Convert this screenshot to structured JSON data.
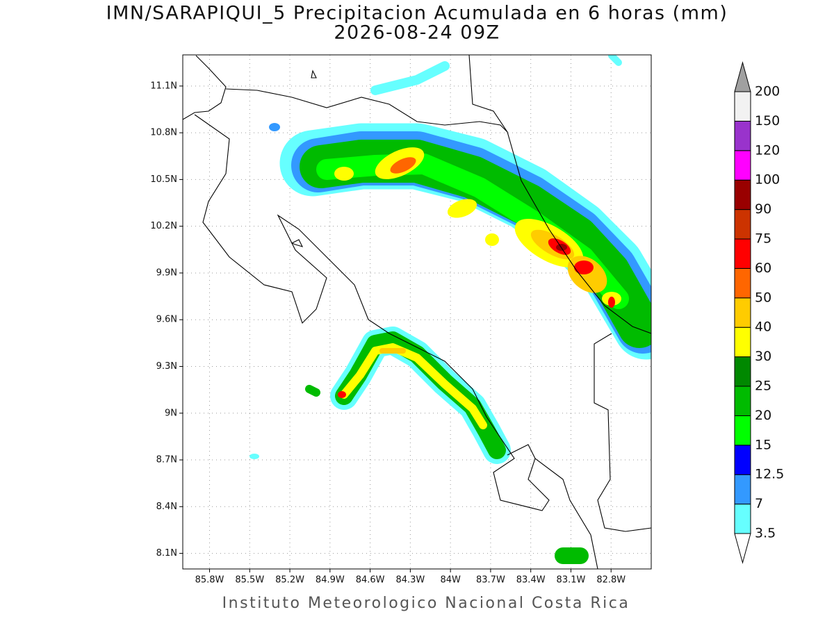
{
  "title": "IMN/SARAPIQUI_5 Precipitacion Acumulada en 6 horas (mm)",
  "subtitle": "2026-08-24 09Z",
  "footer": "Instituto Meteorologico Nacional Costa Rica",
  "map": {
    "xlim": [
      -86.0,
      -82.5
    ],
    "ylim": [
      8.0,
      11.3
    ],
    "grid": true,
    "xticks": [
      {
        "value": -85.8,
        "label": "85.8W"
      },
      {
        "value": -85.5,
        "label": "85.5W"
      },
      {
        "value": -85.2,
        "label": "85.2W"
      },
      {
        "value": -84.9,
        "label": "84.9W"
      },
      {
        "value": -84.6,
        "label": "84.6W"
      },
      {
        "value": -84.3,
        "label": "84.3W"
      },
      {
        "value": -84.0,
        "label": "84W"
      },
      {
        "value": -83.7,
        "label": "83.7W"
      },
      {
        "value": -83.4,
        "label": "83.4W"
      },
      {
        "value": -83.1,
        "label": "83.1W"
      },
      {
        "value": -82.8,
        "label": "82.8W"
      }
    ],
    "yticks": [
      {
        "value": 11.1,
        "label": "11.1N"
      },
      {
        "value": 10.8,
        "label": "10.8N"
      },
      {
        "value": 10.5,
        "label": "10.5N"
      },
      {
        "value": 10.2,
        "label": "10.2N"
      },
      {
        "value": 9.9,
        "label": "9.9N"
      },
      {
        "value": 9.6,
        "label": "9.6N"
      },
      {
        "value": 9.3,
        "label": "9.3N"
      },
      {
        "value": 9.0,
        "label": "9N"
      },
      {
        "value": 8.7,
        "label": "8.7N"
      },
      {
        "value": 8.4,
        "label": "8.4N"
      },
      {
        "value": 8.1,
        "label": "8.1N"
      }
    ]
  },
  "colorbar": {
    "levels": [
      3.5,
      7,
      12.5,
      15,
      20,
      25,
      30,
      40,
      50,
      60,
      75,
      90,
      100,
      120,
      150,
      200
    ],
    "colors": [
      "#66ffff",
      "#3399ff",
      "#0000ff",
      "#00ff00",
      "#00bb00",
      "#008800",
      "#ffff00",
      "#ffcc00",
      "#ff6600",
      "#ff0000",
      "#cc3300",
      "#990000",
      "#ff00ff",
      "#9933cc",
      "#f2f2f2"
    ],
    "under_color": "#ffffff",
    "over_color": "#a0a0a0"
  }
}
